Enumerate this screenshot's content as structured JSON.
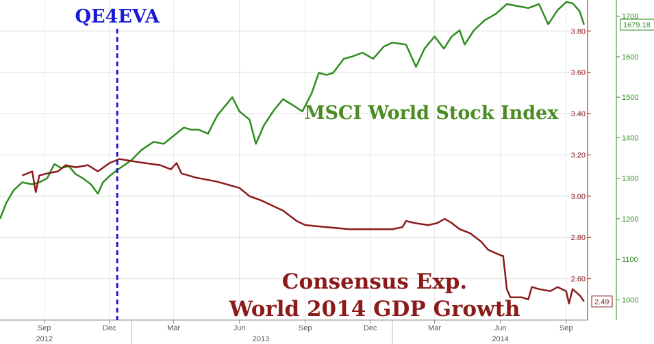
{
  "chart_data": {
    "type": "line",
    "title": "",
    "x_axis": {
      "months": [
        {
          "label": "Sep",
          "date": "2012-09"
        },
        {
          "label": "Dec",
          "date": "2012-12"
        },
        {
          "label": "Mar",
          "date": "2013-03"
        },
        {
          "label": "Jun",
          "date": "2013-06"
        },
        {
          "label": "Sep",
          "date": "2013-09"
        },
        {
          "label": "Dec",
          "date": "2013-12"
        },
        {
          "label": "Mar",
          "date": "2014-03"
        },
        {
          "label": "Jun",
          "date": "2014-06"
        },
        {
          "label": "Sep",
          "date": "2014-09"
        }
      ],
      "years": [
        {
          "label": "2012",
          "date": "2012-09"
        },
        {
          "label": "2013",
          "date": "2013-07"
        },
        {
          "label": "2014",
          "date": "2014-06"
        }
      ],
      "range": [
        "2012-07-01",
        "2014-10-01"
      ]
    },
    "left_axis": {
      "ticks": [
        "3.80",
        "3.60",
        "3.40",
        "3.20",
        "3.00",
        "2.80",
        "2.60"
      ],
      "range": [
        2.4,
        3.95
      ],
      "color": "#8b1a1a"
    },
    "right_axis": {
      "ticks": [
        "1700",
        "1600",
        "1500",
        "1400",
        "1300",
        "1200",
        "1100",
        "1000"
      ],
      "range": [
        950,
        1740
      ],
      "color": "#2e8b1e"
    },
    "grid": true,
    "series": [
      {
        "name": "MSCI World Stock Index",
        "axis": "right",
        "color": "#2e8b1e",
        "last_value_label": "1679.18",
        "points": [
          [
            "2012-07-01",
            1200
          ],
          [
            "2012-07-10",
            1240
          ],
          [
            "2012-07-20",
            1270
          ],
          [
            "2012-08-01",
            1290
          ],
          [
            "2012-08-15",
            1285
          ],
          [
            "2012-08-25",
            1290
          ],
          [
            "2012-09-05",
            1300
          ],
          [
            "2012-09-15",
            1335
          ],
          [
            "2012-09-25",
            1325
          ],
          [
            "2012-10-05",
            1330
          ],
          [
            "2012-10-15",
            1310
          ],
          [
            "2012-10-25",
            1300
          ],
          [
            "2012-11-05",
            1285
          ],
          [
            "2012-11-15",
            1262
          ],
          [
            "2012-11-22",
            1290
          ],
          [
            "2012-12-01",
            1305
          ],
          [
            "2012-12-10",
            1318
          ],
          [
            "2012-12-20",
            1330
          ],
          [
            "2013-01-01",
            1345
          ],
          [
            "2013-01-15",
            1370
          ],
          [
            "2013-02-01",
            1390
          ],
          [
            "2013-02-15",
            1385
          ],
          [
            "2013-03-01",
            1405
          ],
          [
            "2013-03-15",
            1425
          ],
          [
            "2013-03-25",
            1420
          ],
          [
            "2013-04-05",
            1420
          ],
          [
            "2013-04-18",
            1410
          ],
          [
            "2013-05-01",
            1455
          ],
          [
            "2013-05-15",
            1485
          ],
          [
            "2013-05-22",
            1500
          ],
          [
            "2013-06-01",
            1465
          ],
          [
            "2013-06-15",
            1445
          ],
          [
            "2013-06-24",
            1385
          ],
          [
            "2013-07-05",
            1430
          ],
          [
            "2013-07-20",
            1470
          ],
          [
            "2013-08-01",
            1495
          ],
          [
            "2013-08-15",
            1480
          ],
          [
            "2013-08-28",
            1465
          ],
          [
            "2013-09-10",
            1510
          ],
          [
            "2013-09-20",
            1560
          ],
          [
            "2013-10-01",
            1555
          ],
          [
            "2013-10-10",
            1560
          ],
          [
            "2013-10-25",
            1595
          ],
          [
            "2013-11-05",
            1600
          ],
          [
            "2013-11-20",
            1610
          ],
          [
            "2013-12-05",
            1595
          ],
          [
            "2013-12-20",
            1625
          ],
          [
            "2014-01-01",
            1635
          ],
          [
            "2014-01-20",
            1630
          ],
          [
            "2014-02-03",
            1575
          ],
          [
            "2014-02-15",
            1620
          ],
          [
            "2014-03-01",
            1650
          ],
          [
            "2014-03-14",
            1620
          ],
          [
            "2014-03-25",
            1650
          ],
          [
            "2014-04-05",
            1665
          ],
          [
            "2014-04-12",
            1630
          ],
          [
            "2014-04-25",
            1665
          ],
          [
            "2014-05-10",
            1690
          ],
          [
            "2014-05-25",
            1705
          ],
          [
            "2014-06-10",
            1730
          ],
          [
            "2014-06-25",
            1725
          ],
          [
            "2014-07-10",
            1720
          ],
          [
            "2014-07-25",
            1730
          ],
          [
            "2014-08-07",
            1680
          ],
          [
            "2014-08-20",
            1715
          ],
          [
            "2014-09-01",
            1735
          ],
          [
            "2014-09-10",
            1732
          ],
          [
            "2014-09-20",
            1712
          ],
          [
            "2014-09-26",
            1679.18
          ]
        ]
      },
      {
        "name": "Consensus Exp. World 2014 GDP Growth",
        "axis": "left",
        "color": "#8b1a1a",
        "last_value_label": "2.49",
        "points": [
          [
            "2012-08-01",
            3.1
          ],
          [
            "2012-08-15",
            3.12
          ],
          [
            "2012-08-20",
            3.02
          ],
          [
            "2012-08-25",
            3.1
          ],
          [
            "2012-09-05",
            3.11
          ],
          [
            "2012-09-20",
            3.12
          ],
          [
            "2012-10-01",
            3.15
          ],
          [
            "2012-10-15",
            3.14
          ],
          [
            "2012-11-01",
            3.15
          ],
          [
            "2012-11-15",
            3.12
          ],
          [
            "2012-12-01",
            3.16
          ],
          [
            "2012-12-15",
            3.18
          ],
          [
            "2013-01-01",
            3.17
          ],
          [
            "2013-01-20",
            3.16
          ],
          [
            "2013-02-10",
            3.15
          ],
          [
            "2013-02-25",
            3.13
          ],
          [
            "2013-03-05",
            3.16
          ],
          [
            "2013-03-12",
            3.11
          ],
          [
            "2013-04-01",
            3.09
          ],
          [
            "2013-05-01",
            3.07
          ],
          [
            "2013-06-01",
            3.04
          ],
          [
            "2013-06-15",
            3.0
          ],
          [
            "2013-07-01",
            2.98
          ],
          [
            "2013-08-01",
            2.93
          ],
          [
            "2013-08-20",
            2.88
          ],
          [
            "2013-09-01",
            2.86
          ],
          [
            "2013-10-01",
            2.85
          ],
          [
            "2013-11-01",
            2.84
          ],
          [
            "2013-12-01",
            2.84
          ],
          [
            "2014-01-01",
            2.84
          ],
          [
            "2014-01-15",
            2.85
          ],
          [
            "2014-01-20",
            2.88
          ],
          [
            "2014-02-01",
            2.87
          ],
          [
            "2014-02-20",
            2.86
          ],
          [
            "2014-03-05",
            2.87
          ],
          [
            "2014-03-15",
            2.89
          ],
          [
            "2014-03-25",
            2.87
          ],
          [
            "2014-04-05",
            2.84
          ],
          [
            "2014-04-20",
            2.82
          ],
          [
            "2014-05-05",
            2.78
          ],
          [
            "2014-05-15",
            2.74
          ],
          [
            "2014-05-28",
            2.72
          ],
          [
            "2014-06-05",
            2.71
          ],
          [
            "2014-06-10",
            2.55
          ],
          [
            "2014-06-15",
            2.51
          ],
          [
            "2014-07-01",
            2.51
          ],
          [
            "2014-07-10",
            2.5
          ],
          [
            "2014-07-15",
            2.56
          ],
          [
            "2014-07-25",
            2.55
          ],
          [
            "2014-08-10",
            2.54
          ],
          [
            "2014-08-20",
            2.56
          ],
          [
            "2014-09-01",
            2.54
          ],
          [
            "2014-09-05",
            2.48
          ],
          [
            "2014-09-10",
            2.55
          ],
          [
            "2014-09-20",
            2.52
          ],
          [
            "2014-09-26",
            2.49
          ]
        ]
      }
    ],
    "qe_marker": {
      "label": "QE4EVA",
      "date": "2012-12-12",
      "color": "#1a1ad6"
    },
    "annotations": [
      {
        "id": "msci",
        "lines": [
          "MSCI World Stock Index"
        ],
        "color": "#4a8c22"
      },
      {
        "id": "gdp",
        "lines": [
          "Consensus Exp.",
          "World 2014 GDP Growth"
        ],
        "color": "#8b1a1a"
      }
    ]
  }
}
